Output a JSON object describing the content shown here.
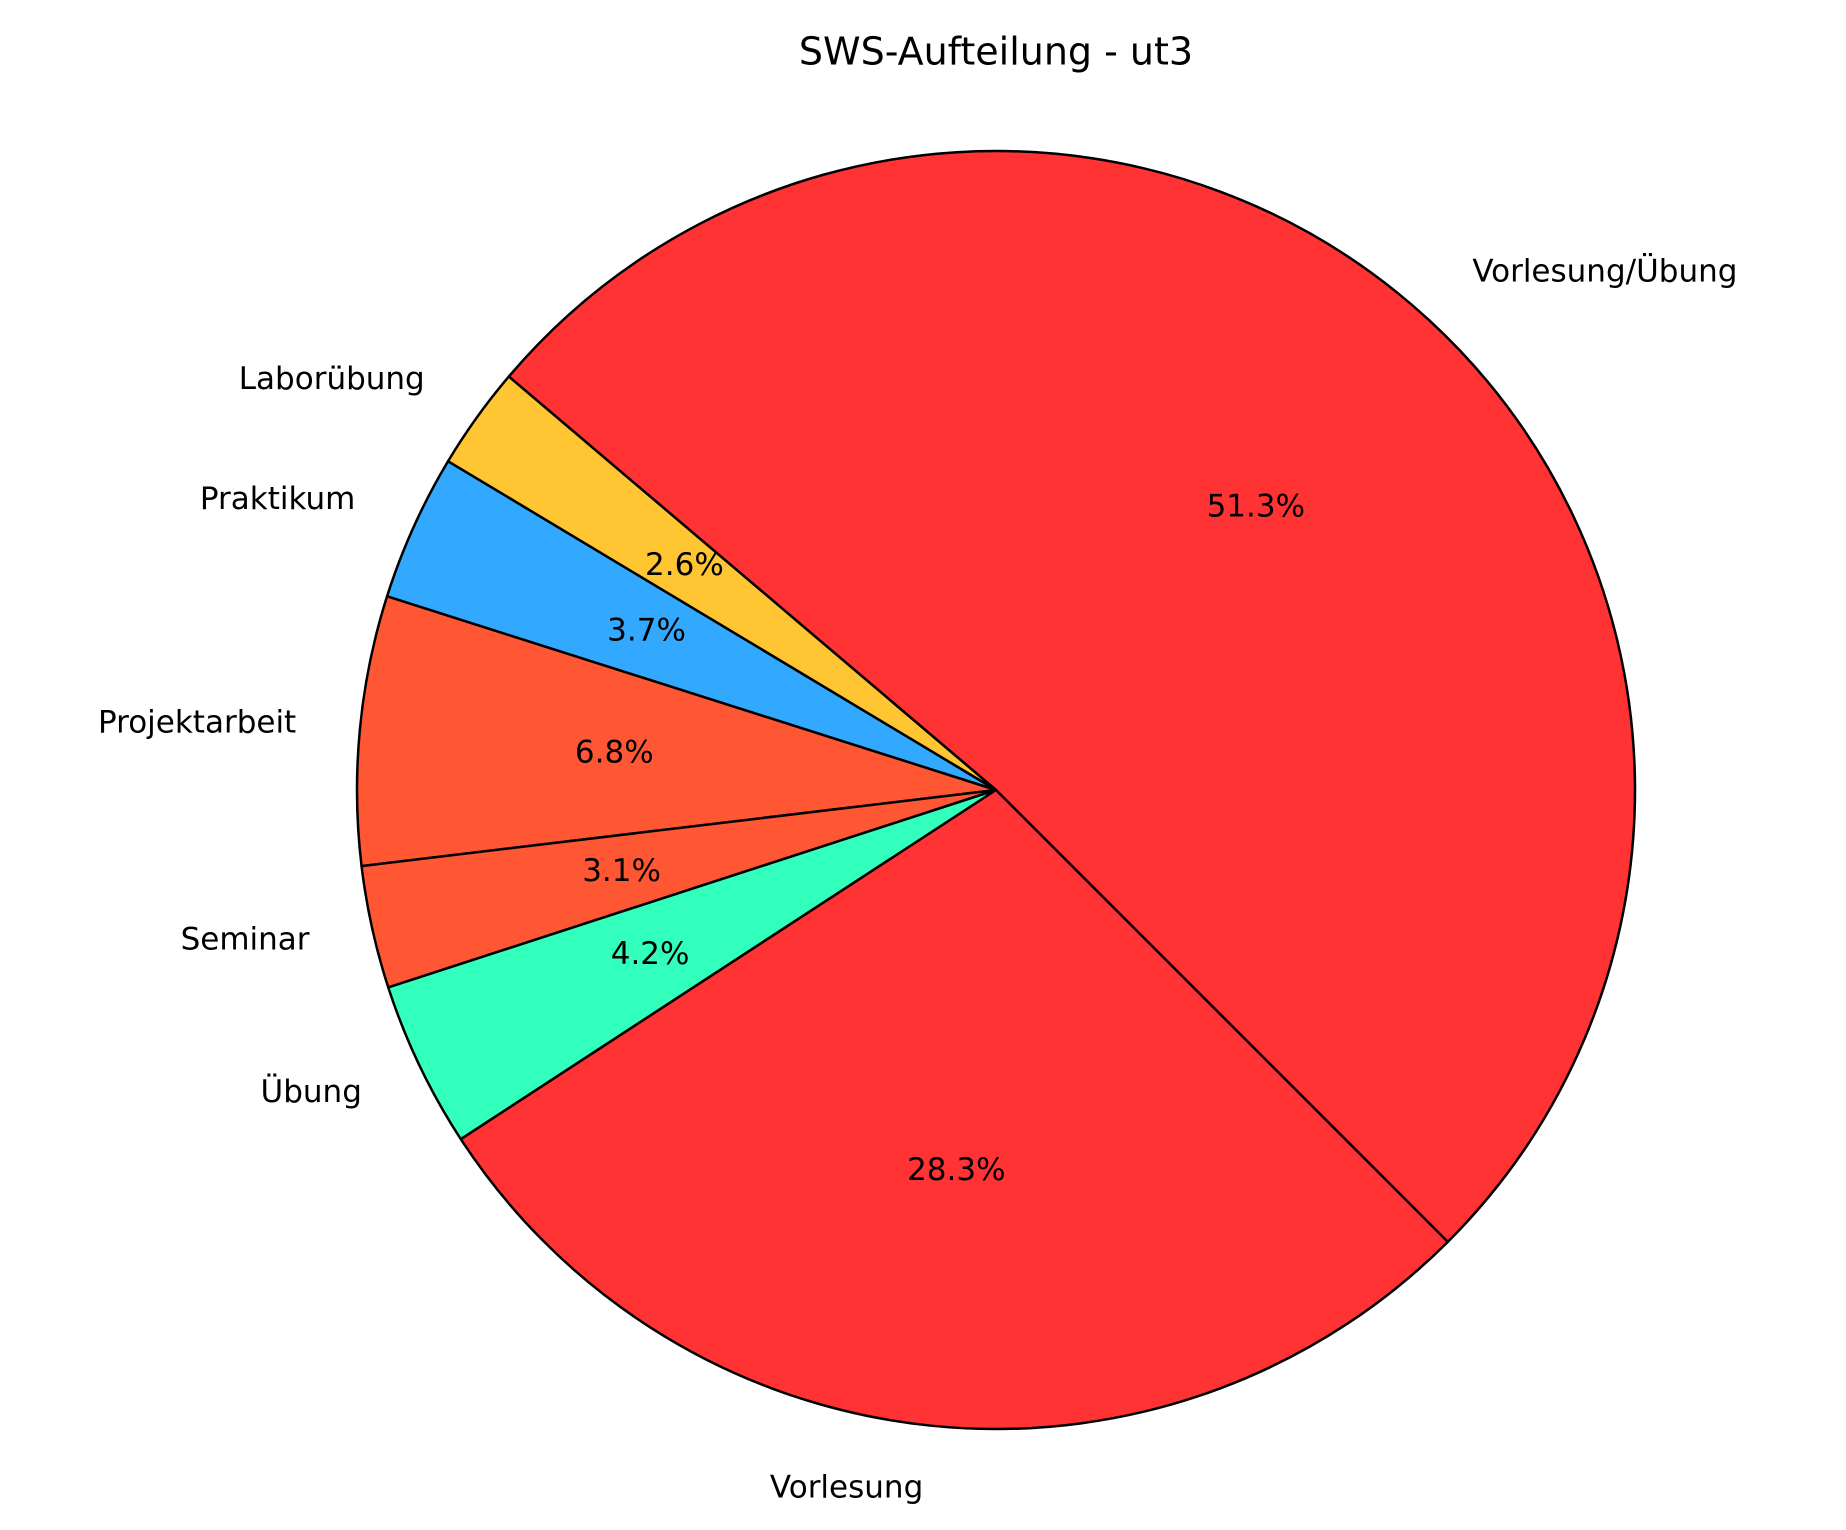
{
  "chart_data": {
    "type": "pie",
    "title": "SWS-Aufteilung - ut3",
    "categories": [
      "Vorlesung/Übung",
      "Laborübung",
      "Praktikum",
      "Projektarbeit",
      "Seminar",
      "Übung",
      "Vorlesung"
    ],
    "values": [
      51.3,
      2.6,
      3.7,
      6.8,
      3.1,
      4.2,
      28.3
    ],
    "value_labels": [
      "51.3%",
      "2.6%",
      "3.7%",
      "6.8%",
      "3.1%",
      "4.2%",
      "28.3%"
    ],
    "colors": [
      "#ff3333",
      "#ffc533",
      "#33a8ff",
      "#ff5733",
      "#ff5733",
      "#33ffbd",
      "#ff3333"
    ]
  }
}
